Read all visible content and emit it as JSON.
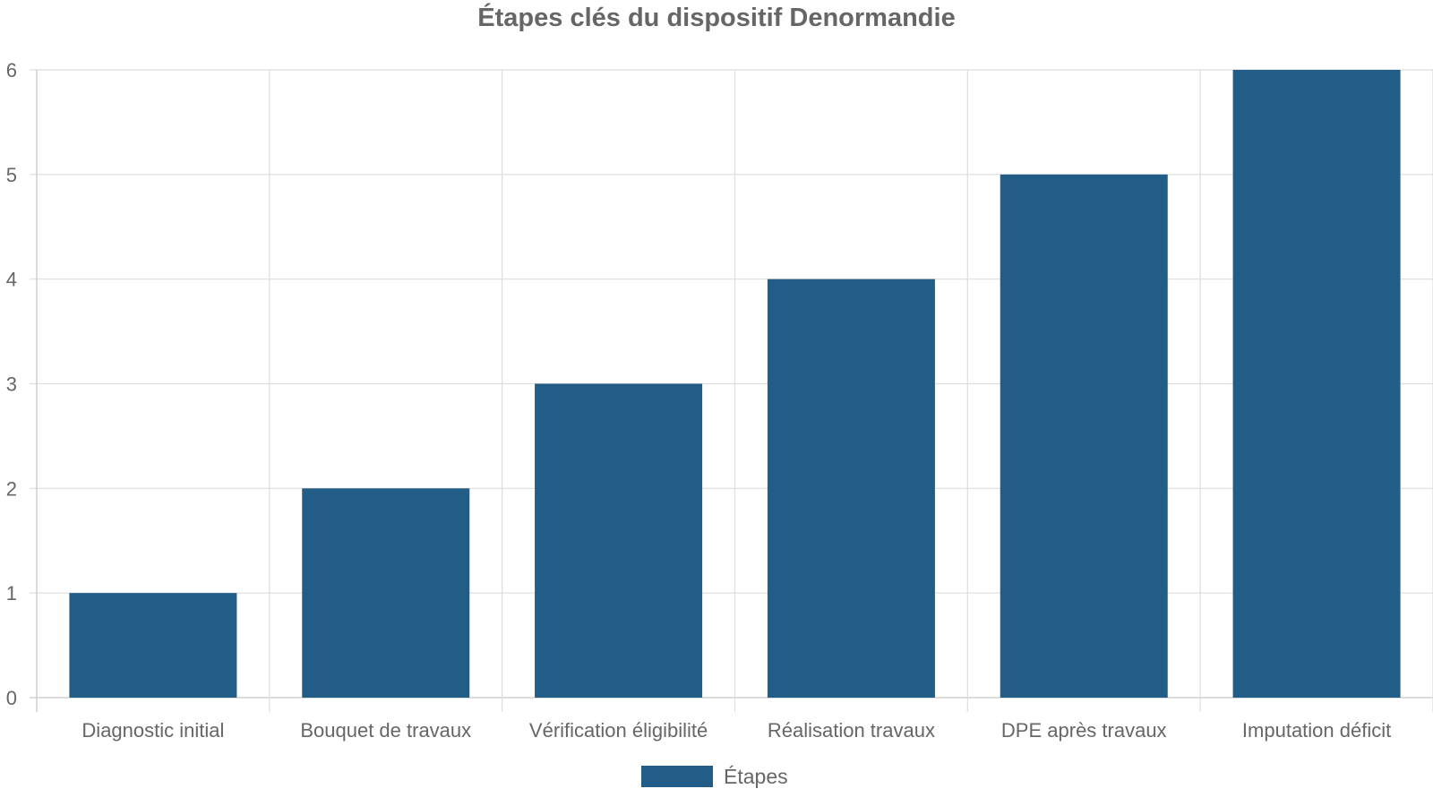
{
  "chart_data": {
    "type": "bar",
    "title": "Étapes clés du dispositif Denormandie",
    "xlabel": "",
    "ylabel": "",
    "categories": [
      "Diagnostic initial",
      "Bouquet de travaux",
      "Vérification éligibilité",
      "Réalisation travaux",
      "DPE après travaux",
      "Imputation déficit"
    ],
    "series": [
      {
        "name": "Étapes",
        "values": [
          1,
          2,
          3,
          4,
          5,
          6
        ],
        "color": "#215d87"
      }
    ],
    "ylim": [
      0,
      6
    ],
    "yticks": [
      "0",
      "1",
      "2",
      "3",
      "4",
      "5",
      "6"
    ],
    "grid": true,
    "legend_position": "bottom"
  },
  "colors": {
    "grid": "#dddddd",
    "axis": "#c8c8c8",
    "text": "#666666"
  }
}
